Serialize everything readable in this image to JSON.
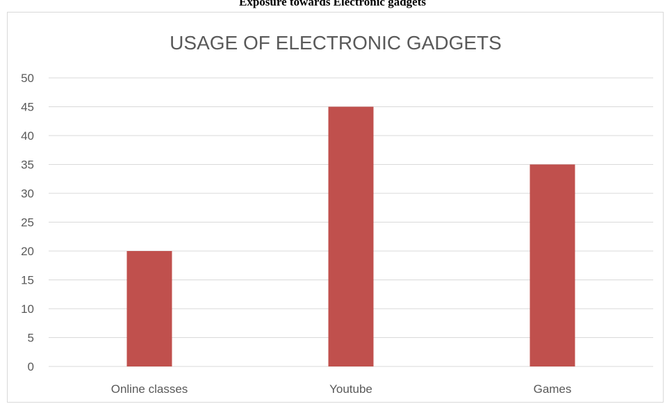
{
  "document": {
    "caption": "Exposure towards Electronic gadgets"
  },
  "chart_data": {
    "type": "bar",
    "title": "USAGE OF ELECTRONIC GADGETS",
    "categories": [
      "Online classes",
      "Youtube",
      "Games"
    ],
    "values": [
      20,
      45,
      35
    ],
    "xlabel": "",
    "ylabel": "",
    "ylim": [
      0,
      50
    ],
    "yticks": [
      0,
      5,
      10,
      15,
      20,
      25,
      30,
      35,
      40,
      45,
      50
    ],
    "grid": true,
    "legend": "none",
    "bar_color": "#c0504d",
    "grid_color": "#d9d9d9",
    "text_color": "#595959"
  }
}
